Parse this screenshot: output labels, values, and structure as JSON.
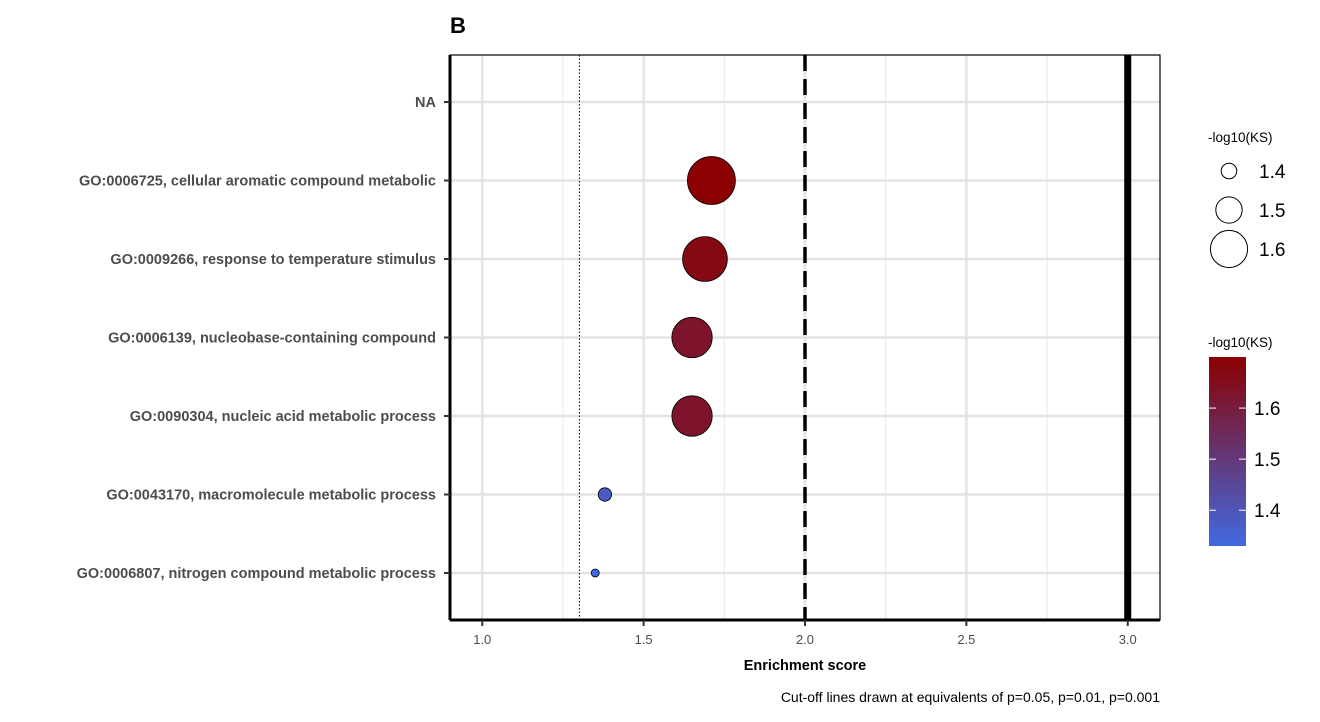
{
  "chart_data": {
    "type": "scatter",
    "panel_tag": "B",
    "xlabel": "Enrichment score",
    "ylabel": "",
    "xlim": [
      0.9,
      3.1
    ],
    "xticks": [
      "1.0",
      "1.5",
      "2.0",
      "2.5",
      "3.0"
    ],
    "grid": true,
    "categories": [
      "NA",
      "GO:0006725, cellular aromatic compound metabolic",
      "GO:0009266, response to temperature stimulus",
      "GO:0006139, nucleobase-containing compound",
      "GO:0090304, nucleic acid metabolic process",
      "GO:0043170, macromolecule metabolic process",
      "GO:0006807, nitrogen compound metabolic process"
    ],
    "points": [
      {
        "term": "GO:0006725, cellular aromatic compound metabolic",
        "x": 1.71,
        "neglog10KS": 1.7
      },
      {
        "term": "GO:0009266, response to temperature stimulus",
        "x": 1.69,
        "neglog10KS": 1.67
      },
      {
        "term": "GO:0006139, nucleobase-containing compound",
        "x": 1.65,
        "neglog10KS": 1.63
      },
      {
        "term": "GO:0090304, nucleic acid metabolic process",
        "x": 1.65,
        "neglog10KS": 1.63
      },
      {
        "term": "GO:0043170, macromolecule metabolic process",
        "x": 1.38,
        "neglog10KS": 1.38
      },
      {
        "term": "GO:0006807, nitrogen compound metabolic process",
        "x": 1.35,
        "neglog10KS": 1.33
      }
    ],
    "cutoff_lines": [
      {
        "x": 1.301,
        "style": "dotted"
      },
      {
        "x": 2.0,
        "style": "dashed"
      },
      {
        "x": 3.0,
        "style": "solid"
      }
    ],
    "size_legend": {
      "title": "-log10(KS)",
      "labels": [
        "1.4",
        "1.5",
        "1.6"
      ],
      "values": [
        1.4,
        1.5,
        1.6
      ]
    },
    "color_legend": {
      "title": "-log10(KS)",
      "labels": [
        "1.6",
        "1.5",
        "1.4"
      ],
      "values": [
        1.6,
        1.5,
        1.4
      ],
      "range": [
        1.33,
        1.7
      ],
      "low_color": "#4169E1",
      "high_color": "#8B0000"
    },
    "caption": "Cut-off lines drawn at equivalents of p=0.05, p=0.01, p=0.001"
  }
}
